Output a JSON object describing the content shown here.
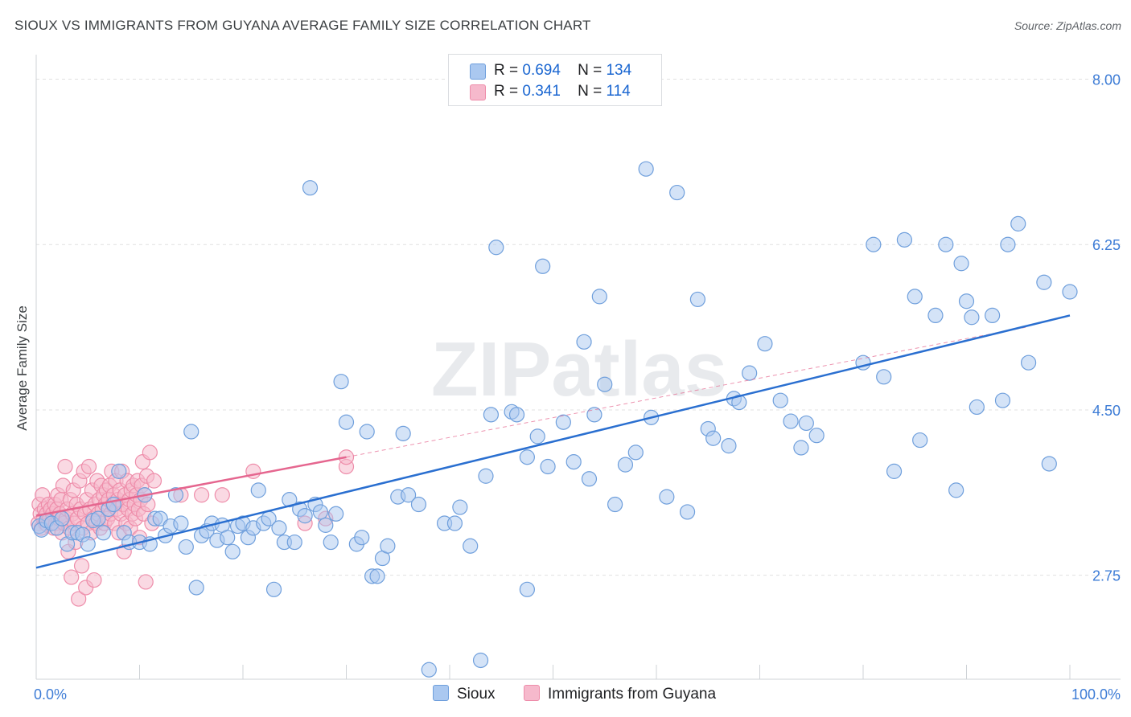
{
  "title": "SIOUX VS IMMIGRANTS FROM GUYANA AVERAGE FAMILY SIZE CORRELATION CHART",
  "source": "Source: ZipAtlas.com",
  "watermark": "ZIPatlas",
  "legend": [
    {
      "r_label": "R =",
      "r_value": "0.694",
      "n_label": "N =",
      "n_value": "134"
    },
    {
      "r_label": "R =",
      "r_value": "0.341",
      "n_label": "N =",
      "n_value": "114"
    }
  ],
  "colors": {
    "sioux_fill": "#aac8f0",
    "sioux_stroke": "#6f9fdc",
    "sioux_line": "#2a6fd0",
    "guyana_fill": "#f6b9cc",
    "guyana_stroke": "#ee8daa",
    "guyana_line": "#e5668f",
    "axis_text": "#3d7cd6",
    "grid": "#e0e0e0"
  },
  "chart_data": {
    "type": "scatter",
    "ylabel": "Average Family Size",
    "xlabel": "",
    "xlim": [
      0,
      100
    ],
    "ylim": [
      1.65,
      8.2
    ],
    "y_ticks": [
      {
        "value": 2.75,
        "label": "2.75"
      },
      {
        "value": 4.5,
        "label": "4.50"
      },
      {
        "value": 6.25,
        "label": "6.25"
      },
      {
        "value": 8.0,
        "label": "8.00"
      }
    ],
    "x_tick_labels": {
      "left": "0.0%",
      "right": "100.0%"
    },
    "grid": true,
    "legend_position": "top-center",
    "series": [
      {
        "name": "Sioux",
        "trend": {
          "x": [
            0,
            100
          ],
          "y": [
            2.83,
            5.5
          ]
        },
        "points": [
          [
            0.3,
            3.27
          ],
          [
            0.5,
            3.23
          ],
          [
            1.0,
            3.33
          ],
          [
            1.5,
            3.3
          ],
          [
            2.0,
            3.25
          ],
          [
            2.5,
            3.35
          ],
          [
            3.0,
            3.08
          ],
          [
            3.5,
            3.2
          ],
          [
            4.0,
            3.2
          ],
          [
            4.5,
            3.18
          ],
          [
            5.0,
            3.08
          ],
          [
            5.5,
            3.33
          ],
          [
            6.0,
            3.35
          ],
          [
            6.5,
            3.2
          ],
          [
            7.0,
            3.45
          ],
          [
            7.5,
            3.5
          ],
          [
            8.0,
            3.85
          ],
          [
            8.5,
            3.2
          ],
          [
            9.0,
            3.1
          ],
          [
            10.0,
            3.1
          ],
          [
            10.5,
            3.6
          ],
          [
            11.0,
            3.08
          ],
          [
            11.5,
            3.35
          ],
          [
            12.0,
            3.35
          ],
          [
            12.5,
            3.17
          ],
          [
            13.0,
            3.27
          ],
          [
            13.5,
            3.6
          ],
          [
            14.0,
            3.3
          ],
          [
            14.5,
            3.05
          ],
          [
            15.0,
            4.27
          ],
          [
            15.5,
            2.62
          ],
          [
            16.0,
            3.17
          ],
          [
            16.5,
            3.22
          ],
          [
            17.0,
            3.3
          ],
          [
            17.5,
            3.12
          ],
          [
            18.0,
            3.28
          ],
          [
            18.5,
            3.15
          ],
          [
            19.0,
            3.0
          ],
          [
            19.5,
            3.27
          ],
          [
            20.0,
            3.3
          ],
          [
            20.5,
            3.15
          ],
          [
            21.0,
            3.25
          ],
          [
            21.5,
            3.65
          ],
          [
            22.0,
            3.3
          ],
          [
            22.5,
            3.35
          ],
          [
            23.0,
            2.6
          ],
          [
            23.5,
            3.25
          ],
          [
            24.0,
            3.1
          ],
          [
            24.5,
            3.55
          ],
          [
            25.0,
            3.1
          ],
          [
            25.5,
            3.45
          ],
          [
            26.0,
            3.38
          ],
          [
            26.5,
            6.85
          ],
          [
            27.0,
            3.5
          ],
          [
            27.5,
            3.42
          ],
          [
            28.0,
            3.28
          ],
          [
            28.5,
            3.1
          ],
          [
            29.0,
            3.4
          ],
          [
            29.5,
            4.8
          ],
          [
            30.0,
            4.37
          ],
          [
            31.0,
            3.08
          ],
          [
            31.5,
            3.15
          ],
          [
            32.0,
            4.27
          ],
          [
            32.5,
            2.74
          ],
          [
            33.0,
            2.74
          ],
          [
            33.5,
            2.93
          ],
          [
            34.0,
            3.06
          ],
          [
            35.0,
            3.58
          ],
          [
            35.5,
            4.25
          ],
          [
            36.0,
            3.6
          ],
          [
            37.0,
            3.5
          ],
          [
            38.0,
            1.75
          ],
          [
            39.5,
            3.3
          ],
          [
            40.5,
            3.3
          ],
          [
            41.0,
            3.47
          ],
          [
            42.0,
            3.06
          ],
          [
            43.0,
            1.85
          ],
          [
            43.5,
            3.8
          ],
          [
            44.0,
            4.45
          ],
          [
            44.5,
            6.22
          ],
          [
            46.0,
            4.48
          ],
          [
            46.5,
            4.45
          ],
          [
            47.5,
            4.0
          ],
          [
            47.5,
            2.6
          ],
          [
            48.5,
            4.22
          ],
          [
            49.0,
            6.02
          ],
          [
            49.5,
            3.9
          ],
          [
            51.0,
            4.37
          ],
          [
            52.0,
            3.95
          ],
          [
            53.0,
            5.22
          ],
          [
            53.5,
            3.77
          ],
          [
            54.0,
            4.45
          ],
          [
            54.5,
            5.7
          ],
          [
            55.0,
            4.77
          ],
          [
            56.0,
            3.5
          ],
          [
            57.0,
            3.92
          ],
          [
            58.0,
            4.05
          ],
          [
            59.0,
            7.05
          ],
          [
            59.5,
            4.42
          ],
          [
            61.0,
            3.58
          ],
          [
            62.0,
            6.8
          ],
          [
            63.0,
            3.42
          ],
          [
            64.0,
            5.67
          ],
          [
            65.0,
            4.3
          ],
          [
            65.5,
            4.2
          ],
          [
            67.0,
            4.12
          ],
          [
            67.5,
            4.62
          ],
          [
            68.0,
            4.58
          ],
          [
            69.0,
            4.89
          ],
          [
            70.5,
            5.2
          ],
          [
            72.0,
            4.6
          ],
          [
            73.0,
            4.38
          ],
          [
            74.0,
            4.1
          ],
          [
            74.5,
            4.36
          ],
          [
            75.5,
            4.23
          ],
          [
            80.0,
            5.0
          ],
          [
            81.0,
            6.25
          ],
          [
            82.0,
            4.85
          ],
          [
            83.0,
            3.85
          ],
          [
            84.0,
            6.3
          ],
          [
            85.0,
            5.7
          ],
          [
            85.5,
            4.18
          ],
          [
            87.0,
            5.5
          ],
          [
            88.0,
            6.25
          ],
          [
            89.0,
            3.65
          ],
          [
            89.5,
            6.05
          ],
          [
            90.0,
            5.65
          ],
          [
            90.5,
            5.48
          ],
          [
            91.0,
            4.53
          ],
          [
            92.5,
            5.5
          ],
          [
            93.5,
            4.6
          ],
          [
            94.0,
            6.25
          ],
          [
            95.0,
            6.47
          ],
          [
            96.0,
            5.0
          ],
          [
            97.5,
            5.85
          ],
          [
            98.0,
            3.93
          ],
          [
            100.0,
            5.75
          ]
        ]
      },
      {
        "name": "Immigrants from Guyana",
        "trend": {
          "x": [
            0,
            30
          ],
          "y": [
            3.38,
            4.0
          ]
        },
        "trend_extension": {
          "x": [
            30,
            96
          ],
          "y": [
            4.0,
            5.38
          ]
        },
        "points": [
          [
            0.2,
            3.3
          ],
          [
            0.3,
            3.5
          ],
          [
            0.4,
            3.4
          ],
          [
            0.5,
            3.25
          ],
          [
            0.6,
            3.6
          ],
          [
            0.7,
            3.35
          ],
          [
            0.8,
            3.45
          ],
          [
            0.9,
            3.3
          ],
          [
            1.0,
            3.4
          ],
          [
            1.1,
            3.28
          ],
          [
            1.2,
            3.5
          ],
          [
            1.3,
            3.35
          ],
          [
            1.4,
            3.45
          ],
          [
            1.5,
            3.3
          ],
          [
            1.6,
            3.4
          ],
          [
            1.7,
            3.25
          ],
          [
            1.8,
            3.5
          ],
          [
            1.9,
            3.3
          ],
          [
            2.0,
            3.45
          ],
          [
            2.1,
            3.6
          ],
          [
            2.2,
            3.35
          ],
          [
            2.3,
            3.4
          ],
          [
            2.4,
            3.55
          ],
          [
            2.5,
            3.2
          ],
          [
            2.6,
            3.7
          ],
          [
            2.7,
            3.3
          ],
          [
            2.8,
            3.9
          ],
          [
            2.9,
            3.35
          ],
          [
            3.0,
            3.45
          ],
          [
            3.1,
            3.0
          ],
          [
            3.2,
            3.25
          ],
          [
            3.3,
            3.55
          ],
          [
            3.4,
            2.73
          ],
          [
            3.5,
            3.4
          ],
          [
            3.6,
            3.65
          ],
          [
            3.7,
            3.3
          ],
          [
            3.8,
            3.1
          ],
          [
            3.9,
            3.5
          ],
          [
            4.0,
            3.35
          ],
          [
            4.1,
            2.5
          ],
          [
            4.2,
            3.75
          ],
          [
            4.3,
            3.45
          ],
          [
            4.4,
            2.85
          ],
          [
            4.5,
            3.25
          ],
          [
            4.6,
            3.85
          ],
          [
            4.7,
            3.4
          ],
          [
            4.8,
            2.62
          ],
          [
            4.9,
            3.55
          ],
          [
            5.0,
            3.3
          ],
          [
            5.1,
            3.9
          ],
          [
            5.2,
            3.45
          ],
          [
            5.3,
            3.2
          ],
          [
            5.4,
            3.65
          ],
          [
            5.5,
            3.35
          ],
          [
            5.6,
            2.7
          ],
          [
            5.7,
            3.5
          ],
          [
            5.8,
            3.3
          ],
          [
            5.9,
            3.75
          ],
          [
            6.0,
            3.4
          ],
          [
            6.1,
            3.55
          ],
          [
            6.2,
            3.25
          ],
          [
            6.3,
            3.7
          ],
          [
            6.4,
            3.45
          ],
          [
            6.5,
            3.6
          ],
          [
            6.6,
            3.3
          ],
          [
            6.7,
            3.5
          ],
          [
            6.8,
            3.65
          ],
          [
            6.9,
            3.35
          ],
          [
            7.0,
            3.55
          ],
          [
            7.1,
            3.7
          ],
          [
            7.2,
            3.4
          ],
          [
            7.3,
            3.85
          ],
          [
            7.4,
            3.5
          ],
          [
            7.5,
            3.6
          ],
          [
            7.6,
            3.3
          ],
          [
            7.7,
            3.75
          ],
          [
            7.8,
            3.45
          ],
          [
            7.9,
            3.55
          ],
          [
            8.0,
            3.2
          ],
          [
            8.1,
            3.65
          ],
          [
            8.2,
            3.4
          ],
          [
            8.3,
            3.85
          ],
          [
            8.4,
            3.5
          ],
          [
            8.5,
            3.0
          ],
          [
            8.6,
            3.6
          ],
          [
            8.7,
            3.3
          ],
          [
            8.8,
            3.75
          ],
          [
            8.9,
            3.45
          ],
          [
            9.0,
            3.55
          ],
          [
            9.1,
            3.25
          ],
          [
            9.2,
            3.65
          ],
          [
            9.3,
            3.4
          ],
          [
            9.4,
            3.7
          ],
          [
            9.5,
            3.5
          ],
          [
            9.6,
            3.35
          ],
          [
            9.7,
            3.6
          ],
          [
            9.8,
            3.75
          ],
          [
            9.9,
            3.45
          ],
          [
            10.0,
            3.15
          ],
          [
            10.1,
            3.55
          ],
          [
            10.2,
            3.7
          ],
          [
            10.3,
            3.95
          ],
          [
            10.4,
            3.4
          ],
          [
            10.5,
            3.6
          ],
          [
            10.6,
            2.68
          ],
          [
            10.7,
            3.8
          ],
          [
            10.8,
            3.5
          ],
          [
            11.0,
            4.05
          ],
          [
            11.2,
            3.3
          ],
          [
            11.4,
            3.75
          ],
          [
            14.0,
            3.6
          ],
          [
            16.0,
            3.6
          ],
          [
            18.0,
            3.6
          ],
          [
            21.0,
            3.85
          ],
          [
            26.0,
            3.3
          ],
          [
            28.0,
            3.35
          ],
          [
            30.0,
            3.9
          ],
          [
            30.0,
            4.0
          ]
        ]
      }
    ]
  },
  "bottom_legend": {
    "sioux": "Sioux",
    "guyana": "Immigrants from Guyana"
  }
}
